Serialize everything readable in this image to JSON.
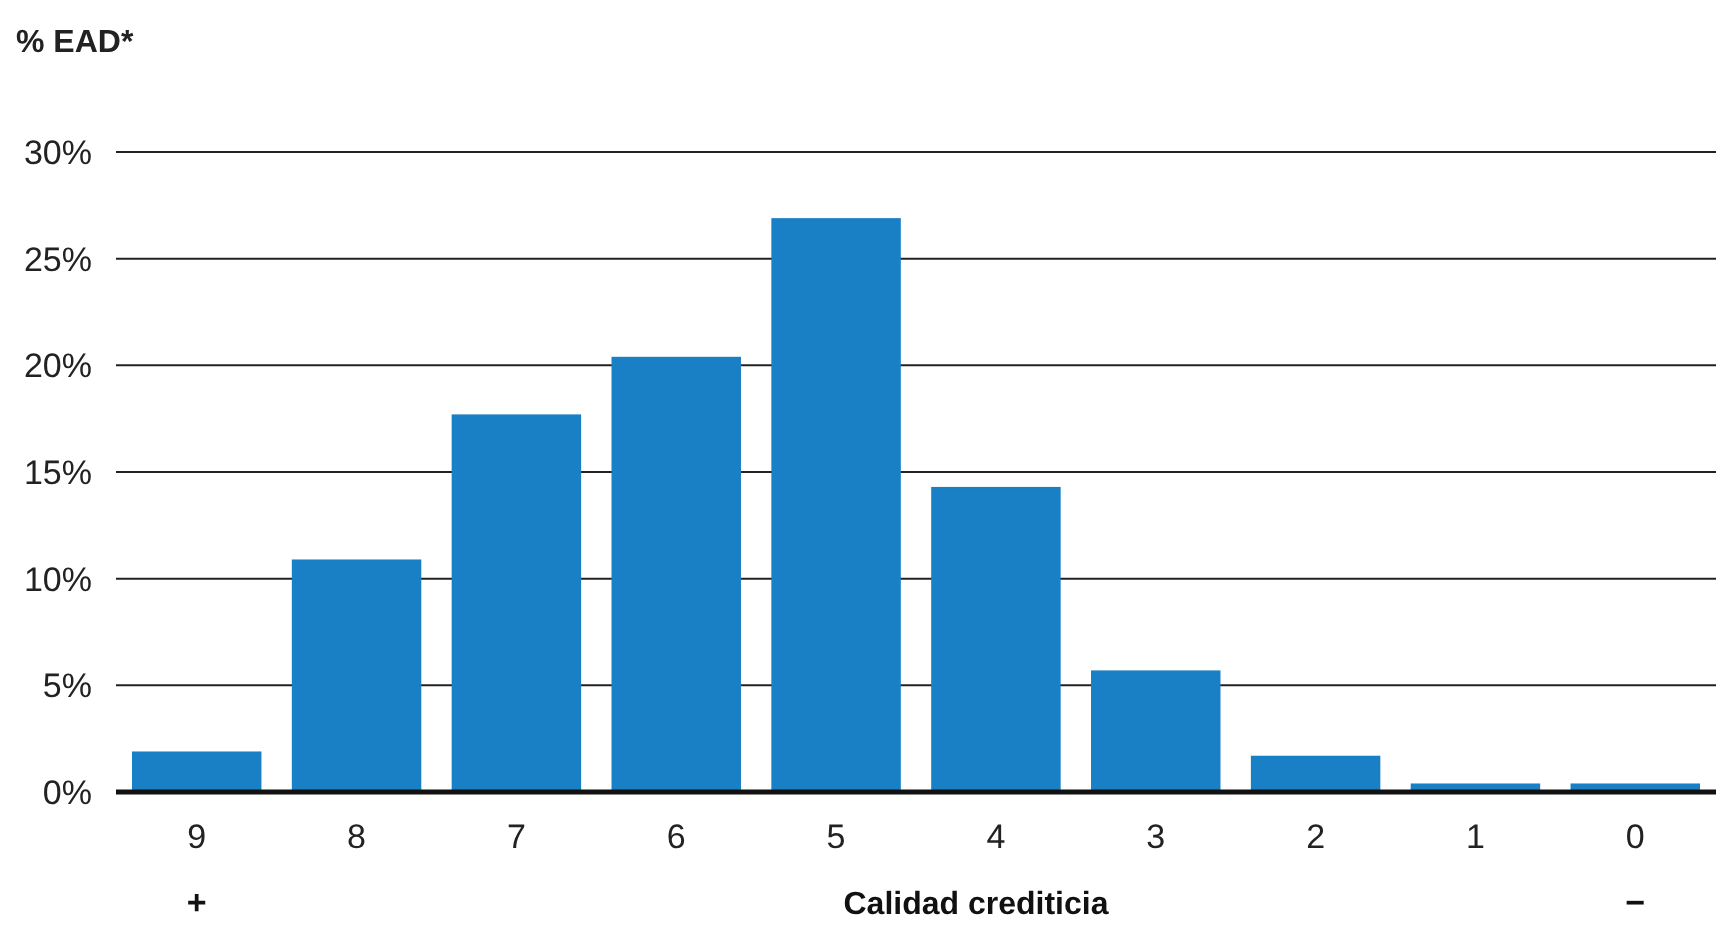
{
  "chart_data": {
    "type": "bar",
    "ylabel": "% EAD*",
    "xlabel": "Calidad crediticia",
    "categories": [
      "9",
      "8",
      "7",
      "6",
      "5",
      "4",
      "3",
      "2",
      "1",
      "0"
    ],
    "values": [
      1.9,
      10.9,
      17.7,
      20.4,
      26.9,
      14.3,
      5.7,
      1.7,
      0.4,
      0.4
    ],
    "color": "#1a80c6",
    "ylim": [
      0,
      30
    ],
    "yticks": [
      {
        "value": 0,
        "label": "0%"
      },
      {
        "value": 5,
        "label": "5%"
      },
      {
        "value": 10,
        "label": "10%"
      },
      {
        "value": 15,
        "label": "15%"
      },
      {
        "value": 20,
        "label": "20%"
      },
      {
        "value": 25,
        "label": "25%"
      },
      {
        "value": 30,
        "label": "30%"
      }
    ],
    "grid": "y",
    "annotations": [
      "+",
      "−"
    ]
  }
}
